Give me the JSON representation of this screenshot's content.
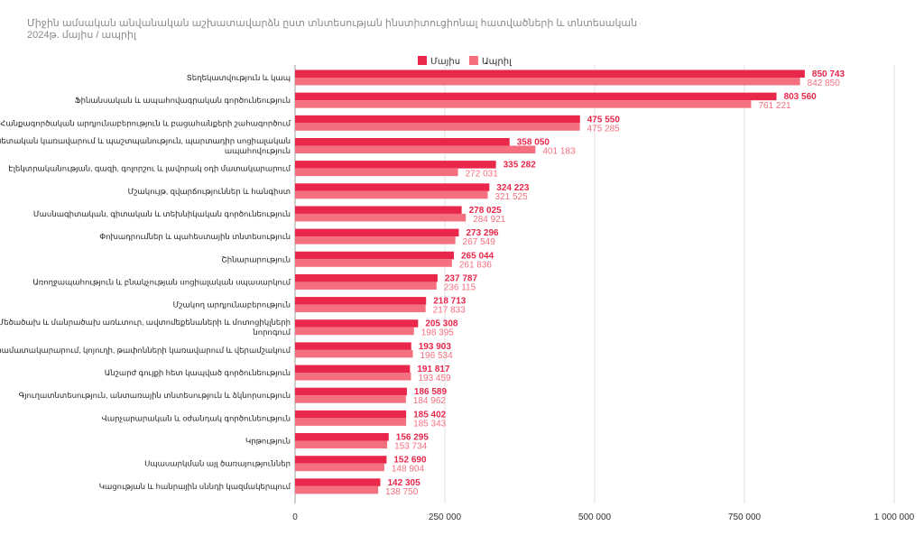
{
  "header": {
    "title_line1": "Միջին ամսական անվանական աշխատավարձն ըստ տնտեսության ինստիտուցիոնալ հատվածների և տնտեսական գործունեության տեսակների",
    "title_line2": "2024թ. մայիս / ապրիլ"
  },
  "colors": {
    "series1": "#e8274b",
    "series2": "#f4707f",
    "grid": "#e2e2e2",
    "axis_text": "#333333",
    "cat_text": "#222222"
  },
  "chart_data": {
    "type": "bar",
    "orientation": "horizontal",
    "categories": [
      "Տեղեկատվություն և կապ",
      "Ֆինանսական և ապահովագրական գործունեություն",
      "Հանքագործական արդյունաբերություն և բացահանքերի շահագործում",
      [
        "Պետական կառավարում և պաշտպանություն, պարտադիր սոցիալական",
        "ապահովություն"
      ],
      "Էլեկտրականության, գազի, գոլորշու և լավորակ օդի մատակարարում",
      "Մշակույթ, զվարճություններ և հանգիստ",
      "Մասնագիտական, գիտական և տեխնիկական գործունեություն",
      "Փոխադրումներ և պահեստային տնտեսություն",
      "Շինարարություն",
      "Առողջապահություն և բնակչության սոցիալական սպասարկում",
      "Մշակող արդյունաբերություն",
      [
        "Մեծածախ և մանրածախ առևտուր, ավտոմեքենաների և մոտոցիկլների",
        "նորոգում"
      ],
      "Ջրամատակարարում, կոյուղի, թափոնների կառավարում և վերամշակում",
      "Անշարժ գույքի հետ կապված գործունեություն",
      "Գյուղատնտեսություն, անտառային տնտեսություն և ձկնորսություն",
      "Վարչարարական և օժանդակ գործունեություն",
      "Կրթություն",
      "Սպասարկման այլ ծառայություններ",
      "Կացության և հանրային սննդի կազմակերպում"
    ],
    "series": [
      {
        "name": "Մայիս",
        "values": [
          850743,
          803560,
          475550,
          358050,
          335282,
          324223,
          278025,
          273296,
          265044,
          237787,
          218713,
          205308,
          193903,
          191817,
          186589,
          185402,
          156295,
          152690,
          142305
        ],
        "labels": [
          "850 743",
          "803 560",
          "475 550",
          "358 050",
          "335 282",
          "324 223",
          "278 025",
          "273 296",
          "265 044",
          "237 787",
          "218 713",
          "205 308",
          "193 903",
          "191 817",
          "186 589",
          "185 402",
          "156 295",
          "152 690",
          "142 305"
        ]
      },
      {
        "name": "Ապրիլ",
        "values": [
          842850,
          761221,
          475285,
          401183,
          272031,
          321525,
          284921,
          267549,
          261836,
          236115,
          217833,
          198395,
          196534,
          193459,
          184962,
          185343,
          153734,
          148904,
          138750
        ],
        "labels": [
          "842 850",
          "761 221",
          "475 285",
          "401 183",
          "272 031",
          "321 525",
          "284 921",
          "267 549",
          "261 836",
          "236 115",
          "217 833",
          "198 395",
          "196 534",
          "193 459",
          "184 962",
          "185 343",
          "153 734",
          "148 904",
          "138 750"
        ]
      }
    ],
    "xlim": [
      0,
      1000000
    ],
    "xticks": [
      0,
      250000,
      500000,
      750000,
      1000000
    ],
    "xtick_labels": [
      "0",
      "250 000",
      "500 000",
      "750 000",
      "1 000 000"
    ],
    "grid": true,
    "legend_position": "top"
  }
}
